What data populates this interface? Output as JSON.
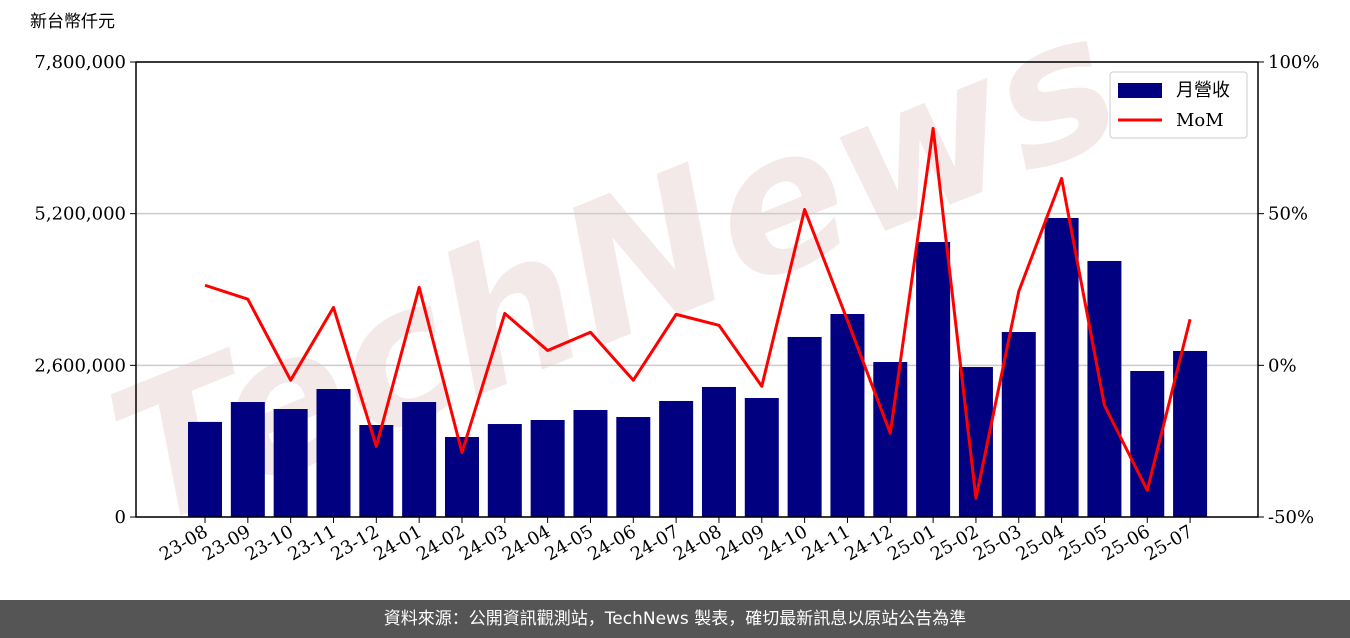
{
  "chart_data": {
    "type": "bar",
    "y_label": "新台幣仟元",
    "watermark": "TechNews",
    "categories": [
      "23-08",
      "23-09",
      "23-10",
      "23-11",
      "23-12",
      "24-01",
      "24-02",
      "24-03",
      "24-04",
      "24-05",
      "24-06",
      "24-07",
      "24-08",
      "24-09",
      "24-10",
      "24-11",
      "24-12",
      "25-01",
      "25-02",
      "25-03",
      "25-04",
      "25-05",
      "25-06",
      "25-07"
    ],
    "series": [
      {
        "name": "月營收",
        "type": "bar",
        "color": "#000080",
        "axis": "y",
        "values": [
          1630000,
          1971000,
          1851000,
          2194000,
          1577000,
          1971000,
          1371000,
          1594000,
          1663000,
          1834000,
          1714000,
          1989000,
          2229000,
          2040000,
          3086000,
          3480000,
          2657000,
          4714000,
          2571000,
          3171000,
          5126000,
          4389000,
          2503000,
          2846000
        ]
      },
      {
        "name": "MoM",
        "type": "line",
        "color": "#ff0000",
        "axis": "y2",
        "values": [
          26.4,
          21.8,
          -4.9,
          19.1,
          -26.7,
          25.7,
          -28.7,
          17.1,
          4.9,
          10.9,
          -4.9,
          16.8,
          13.2,
          -6.9,
          51.4,
          14.8,
          -22.4,
          78.1,
          -43.8,
          24.4,
          61.6,
          -13.2,
          -41.2,
          15.2
        ]
      }
    ],
    "ylim": [
      0,
      7800000
    ],
    "yticks": [
      0,
      {
        "value": 2600000,
        "label": "2,600,000"
      },
      {
        "value": 5200000,
        "label": "5,200,000"
      },
      {
        "value": 7800000,
        "label": "7,800,000"
      }
    ],
    "y2lim": [
      -50,
      100
    ],
    "y2ticks": [
      {
        "value": -50,
        "label": "-50%"
      },
      {
        "value": 0,
        "label": "0%"
      },
      {
        "value": 50,
        "label": "50%"
      },
      {
        "value": 100,
        "label": "100%"
      }
    ],
    "grid": true,
    "legend": "upper right"
  },
  "footer": "資料來源：公開資訊觀測站，TechNews 製表，確切最新訊息以原站公告為準"
}
